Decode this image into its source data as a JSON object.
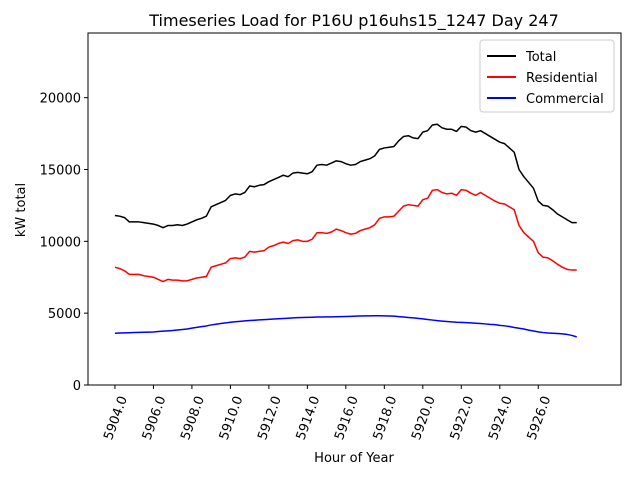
{
  "chart_data": {
    "type": "line",
    "title": "Timeseries Load for P16U p16uhs15_1247  Day 247",
    "xlabel": "Hour of Year",
    "ylabel": "kW total",
    "xlim": [
      5902.6,
      5930.3
    ],
    "ylim": [
      0,
      24500
    ],
    "xticks": [
      5904,
      5906,
      5908,
      5910,
      5912,
      5914,
      5916,
      5918,
      5920,
      5922,
      5924,
      5926
    ],
    "xtick_labels": [
      "5904.0",
      "5906.0",
      "5908.0",
      "5910.0",
      "5912.0",
      "5914.0",
      "5916.0",
      "5918.0",
      "5920.0",
      "5922.0",
      "5924.0",
      "5926.0"
    ],
    "yticks": [
      0,
      5000,
      10000,
      15000,
      20000
    ],
    "ytick_labels": [
      "0",
      "5000",
      "10000",
      "15000",
      "20000"
    ],
    "legend_position": "top-right",
    "x": [
      5904,
      5904.25,
      5904.5,
      5904.75,
      5905,
      5905.25,
      5905.5,
      5905.75,
      5906,
      5906.25,
      5906.5,
      5906.75,
      5907,
      5907.25,
      5907.5,
      5907.75,
      5908,
      5908.25,
      5908.5,
      5908.75,
      5909,
      5909.25,
      5909.5,
      5909.75,
      5910,
      5910.25,
      5910.5,
      5910.75,
      5911,
      5911.25,
      5911.5,
      5911.75,
      5912,
      5912.25,
      5912.5,
      5912.75,
      5913,
      5913.25,
      5913.5,
      5913.75,
      5914,
      5914.25,
      5914.5,
      5914.75,
      5915,
      5915.25,
      5915.5,
      5915.75,
      5916,
      5916.25,
      5916.5,
      5916.75,
      5917,
      5917.25,
      5917.5,
      5917.75,
      5918,
      5918.25,
      5918.5,
      5918.75,
      5919,
      5919.25,
      5919.5,
      5919.75,
      5920,
      5920.25,
      5920.5,
      5920.75,
      5921,
      5921.25,
      5921.5,
      5921.75,
      5922,
      5922.25,
      5922.5,
      5922.75,
      5923,
      5923.25,
      5923.5,
      5923.75,
      5924,
      5924.25,
      5924.5,
      5924.75,
      5925,
      5925.25,
      5925.5,
      5925.75,
      5926,
      5926.25,
      5926.5,
      5926.75,
      5927,
      5927.25,
      5927.5,
      5927.75,
      5928
    ],
    "series": [
      {
        "name": "Total",
        "color": "#000000",
        "values": [
          11800,
          11750,
          11650,
          11350,
          11350,
          11350,
          11300,
          11250,
          11200,
          11100,
          10950,
          11100,
          11100,
          11150,
          11100,
          11200,
          11350,
          11500,
          11600,
          11750,
          12400,
          12550,
          12700,
          12850,
          13200,
          13300,
          13250,
          13400,
          13850,
          13800,
          13900,
          13950,
          14150,
          14300,
          14450,
          14600,
          14500,
          14750,
          14800,
          14750,
          14700,
          14850,
          15300,
          15350,
          15300,
          15450,
          15600,
          15550,
          15400,
          15300,
          15350,
          15550,
          15650,
          15750,
          15950,
          16400,
          16500,
          16550,
          16600,
          17000,
          17300,
          17350,
          17200,
          17150,
          17600,
          17700,
          18100,
          18150,
          17900,
          17800,
          17800,
          17650,
          18000,
          17950,
          17700,
          17600,
          17700,
          17500,
          17300,
          17100,
          16900,
          16800,
          16500,
          16200,
          15000,
          14500,
          14100,
          13700,
          12800,
          12500,
          12450,
          12200,
          11900,
          11700,
          11500,
          11300,
          11300
        ]
      },
      {
        "name": "Residential",
        "color": "#ff0000",
        "values": [
          8200,
          8100,
          7950,
          7700,
          7700,
          7700,
          7600,
          7550,
          7500,
          7350,
          7200,
          7350,
          7300,
          7300,
          7250,
          7250,
          7350,
          7450,
          7500,
          7550,
          8200,
          8300,
          8400,
          8500,
          8800,
          8850,
          8800,
          8900,
          9300,
          9250,
          9300,
          9350,
          9600,
          9700,
          9850,
          9950,
          9850,
          10050,
          10100,
          10000,
          10000,
          10150,
          10600,
          10600,
          10550,
          10650,
          10850,
          10750,
          10600,
          10500,
          10550,
          10750,
          10850,
          10950,
          11150,
          11600,
          11700,
          11700,
          11750,
          12100,
          12450,
          12550,
          12500,
          12450,
          12900,
          13000,
          13550,
          13600,
          13400,
          13300,
          13350,
          13200,
          13600,
          13550,
          13350,
          13200,
          13400,
          13200,
          13000,
          12800,
          12650,
          12600,
          12400,
          12200,
          11100,
          10600,
          10300,
          10000,
          9200,
          8900,
          8850,
          8650,
          8400,
          8200,
          8050,
          8000,
          8000
        ]
      },
      {
        "name": "Commercial",
        "color": "#0000ff",
        "values": [
          3600,
          3620,
          3630,
          3640,
          3650,
          3660,
          3670,
          3680,
          3690,
          3720,
          3750,
          3770,
          3790,
          3830,
          3860,
          3900,
          3960,
          4010,
          4060,
          4110,
          4180,
          4230,
          4280,
          4320,
          4370,
          4400,
          4430,
          4460,
          4490,
          4510,
          4530,
          4550,
          4570,
          4590,
          4610,
          4630,
          4650,
          4670,
          4690,
          4700,
          4710,
          4720,
          4730,
          4735,
          4740,
          4745,
          4750,
          4760,
          4770,
          4780,
          4790,
          4800,
          4810,
          4815,
          4820,
          4820,
          4810,
          4800,
          4790,
          4760,
          4730,
          4700,
          4670,
          4640,
          4600,
          4560,
          4520,
          4480,
          4450,
          4420,
          4390,
          4370,
          4360,
          4340,
          4320,
          4300,
          4280,
          4250,
          4220,
          4200,
          4150,
          4120,
          4070,
          4000,
          3950,
          3900,
          3820,
          3760,
          3700,
          3650,
          3620,
          3600,
          3580,
          3560,
          3520,
          3450,
          3350
        ]
      }
    ]
  }
}
